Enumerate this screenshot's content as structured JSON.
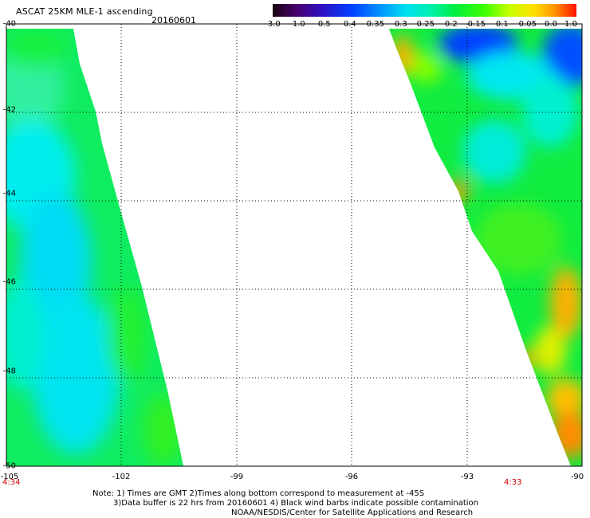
{
  "header": {
    "title": "ASCAT 25KM MLE-1 ascending",
    "date": "20160601"
  },
  "colorbar": {
    "labels": [
      "-3.0",
      "-1.0",
      "-0.5",
      "-0.4",
      "-0.35",
      "-0.3",
      "-0.25",
      "-0.2",
      "-0.15",
      "-0.1",
      "-0.05",
      "0.0",
      "1.0"
    ],
    "colors": [
      "#200010",
      "#5a0090",
      "#2a10d0",
      "#0040ff",
      "#0090ff",
      "#00d8f0",
      "#00f0c0",
      "#00ee40",
      "#50ff00",
      "#c8ff00",
      "#ffe000",
      "#ff9000",
      "#ff2000"
    ]
  },
  "axes": {
    "y_ticks": [
      "-40",
      "-42",
      "-44",
      "-46",
      "-48",
      "-50"
    ],
    "x_ticks": [
      "-105",
      "-102",
      "-99",
      "-96",
      "-93",
      "-90"
    ],
    "lon_range": [
      -105,
      -90
    ],
    "lat_range": [
      -50,
      -40
    ]
  },
  "times": {
    "left": "4:34",
    "right": "4:33"
  },
  "notes": {
    "line1": "Note: 1) Times are GMT 2)Times along bottom correspond to measurement at -45S",
    "line2": "3)Data buffer is 22 hrs from 20160601 4) Black wind barbs indicate possible contamination",
    "line3": "NOAA/NESDIS/Center for Satellite Applications and Research"
  }
}
